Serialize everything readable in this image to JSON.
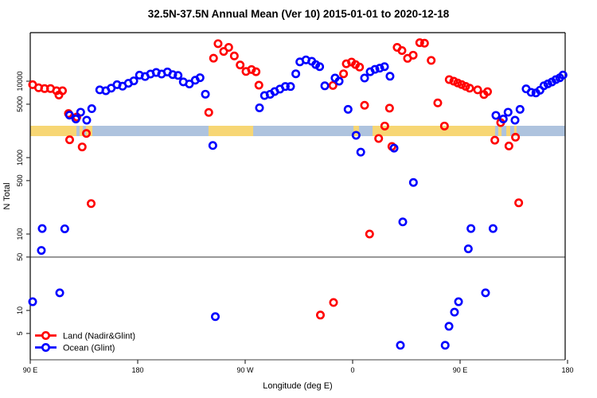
{
  "title": "32.5N-37.5N Annual Mean (Ver 10)   2015-01-01 to 2020-12-18",
  "axes": {
    "xlabel": "Longitude (deg E)",
    "ylabel": "N Total",
    "x_ticks": [
      {
        "t": 90,
        "label": "90 E"
      },
      {
        "t": 180,
        "label": "180"
      },
      {
        "t": 270,
        "label": "90 W"
      },
      {
        "t": 360,
        "label": "0"
      },
      {
        "t": 450,
        "label": "90 E"
      },
      {
        "t": 540,
        "label": "180"
      }
    ],
    "y_ticks": [
      {
        "v": 10000,
        "label": "10000"
      },
      {
        "v": 5000,
        "label": "5000"
      },
      {
        "v": 1000,
        "label": "1000"
      },
      {
        "v": 500,
        "label": "500"
      },
      {
        "v": 100,
        "label": "100"
      },
      {
        "v": 50,
        "label": "50"
      },
      {
        "v": 10,
        "label": "10"
      },
      {
        "v": 5,
        "label": "5"
      }
    ],
    "reference_line_value": 50
  },
  "legend": {
    "items": [
      {
        "label": "Land (Nadir&Glint)",
        "color": "#ff0000"
      },
      {
        "label": "Ocean (Glint)",
        "color": "#0000ff"
      }
    ]
  },
  "colors": {
    "land_series": "#ff0000",
    "ocean_series": "#0000ff",
    "band_land": "#f7d674",
    "band_ocean": "#aec3de",
    "box": "#000000",
    "gray_line": "#808080"
  },
  "chart_data": {
    "type": "scatter",
    "title": "32.5N-37.5N Annual Mean (Ver 10)   2015-01-01 to 2020-12-18",
    "xlabel": "Longitude (deg E)",
    "ylabel": "N Total",
    "x_axis_note": "axis coordinate in deg, running eastward 90E -> 180 -> 90W(270) -> 0(360) -> 90E(450) -> 180(540)",
    "x_range": [
      90,
      540
    ],
    "y_scale": "log10",
    "y_range": [
      2.3,
      43000
    ],
    "surface_band": {
      "description": "land(yellow)/ocean(blue) surface-type strip",
      "n_range": [
        1910,
        2610
      ],
      "segments": [
        {
          "t1": 90,
          "t2": 538,
          "type": "ocean"
        },
        {
          "t1": 90,
          "t2": 128.7,
          "type": "land"
        },
        {
          "t1": 131.3,
          "t2": 134,
          "type": "land"
        },
        {
          "t1": 136.7,
          "t2": 142,
          "type": "land"
        },
        {
          "t1": 239.3,
          "t2": 276.7,
          "type": "land"
        },
        {
          "t1": 360.7,
          "t2": 365.3,
          "type": "land"
        },
        {
          "t1": 376.7,
          "t2": 479.3,
          "type": "land"
        },
        {
          "t1": 482,
          "t2": 484.7,
          "type": "land"
        },
        {
          "t1": 488.7,
          "t2": 492,
          "type": "land"
        },
        {
          "t1": 495.3,
          "t2": 497.3,
          "type": "land"
        }
      ]
    },
    "series": [
      {
        "name": "Land (Nadir&Glint)",
        "color": "#ff0000",
        "points": [
          [
            92,
            9000
          ],
          [
            97,
            8200
          ],
          [
            102,
            8000
          ],
          [
            107,
            8000
          ],
          [
            112,
            7500
          ],
          [
            114,
            6600
          ],
          [
            117,
            7500
          ],
          [
            122,
            3770
          ],
          [
            129,
            3400
          ],
          [
            123,
            1710
          ],
          [
            137,
            2070
          ],
          [
            133.5,
            1380
          ],
          [
            141,
            250
          ],
          [
            239.5,
            3900
          ],
          [
            243.5,
            20000
          ],
          [
            247.3,
            31000
          ],
          [
            252,
            24500
          ],
          [
            256.2,
            27700
          ],
          [
            260.9,
            21400
          ],
          [
            265.8,
            16300
          ],
          [
            270.7,
            13400
          ],
          [
            275.3,
            14200
          ],
          [
            279.1,
            13300
          ],
          [
            281.5,
            8870
          ],
          [
            343.5,
            8800
          ],
          [
            352.4,
            12500
          ],
          [
            354.7,
            16900
          ],
          [
            359.1,
            17800
          ],
          [
            362.4,
            16500
          ],
          [
            365.8,
            15300
          ],
          [
            370,
            4840
          ],
          [
            374.2,
            100
          ],
          [
            381.8,
            1780
          ],
          [
            386.9,
            2590
          ],
          [
            390.9,
            4440
          ],
          [
            392.9,
            1400
          ],
          [
            397.3,
            27700
          ],
          [
            401.3,
            25200
          ],
          [
            406,
            19900
          ],
          [
            410.7,
            21900
          ],
          [
            416.2,
            31900
          ],
          [
            420.2,
            31400
          ],
          [
            425.8,
            18700
          ],
          [
            431.3,
            5200
          ],
          [
            436.9,
            2590
          ],
          [
            440.9,
            10500
          ],
          [
            444.7,
            10000
          ],
          [
            448,
            9480
          ],
          [
            451.3,
            9030
          ],
          [
            454.7,
            8560
          ],
          [
            458,
            8110
          ],
          [
            464.7,
            7700
          ],
          [
            470,
            6700
          ],
          [
            473,
            7300
          ],
          [
            479.1,
            1690
          ],
          [
            484,
            2870
          ],
          [
            490.9,
            1420
          ],
          [
            496.4,
            1850
          ],
          [
            499.1,
            256
          ],
          [
            333,
            8.7
          ],
          [
            344,
            12.7
          ]
        ]
      },
      {
        "name": "Ocean (Glint)",
        "color": "#0000ff",
        "points": [
          [
            92,
            13
          ],
          [
            114.7,
            17
          ],
          [
            99.3,
            61
          ],
          [
            100,
            118
          ],
          [
            118.9,
            117
          ],
          [
            122.9,
            3600
          ],
          [
            128.2,
            3200
          ],
          [
            132.2,
            3930
          ],
          [
            137.3,
            3090
          ],
          [
            141.5,
            4370
          ],
          [
            148.2,
            7700
          ],
          [
            153.3,
            7500
          ],
          [
            157.8,
            8100
          ],
          [
            162.7,
            9000
          ],
          [
            167.3,
            8600
          ],
          [
            172.2,
            9400
          ],
          [
            176.7,
            10100
          ],
          [
            181.5,
            12000
          ],
          [
            186.2,
            11500
          ],
          [
            190.7,
            12400
          ],
          [
            195.5,
            13000
          ],
          [
            200,
            12400
          ],
          [
            204.9,
            13200
          ],
          [
            209.3,
            12200
          ],
          [
            213.8,
            11900
          ],
          [
            218.2,
            9800
          ],
          [
            223.3,
            9200
          ],
          [
            228.2,
            10300
          ],
          [
            232.2,
            11100
          ],
          [
            236.7,
            6760
          ],
          [
            242.9,
            1440
          ],
          [
            245,
            8.3
          ],
          [
            282,
            4480
          ],
          [
            286.2,
            6490
          ],
          [
            290.9,
            6740
          ],
          [
            294.7,
            7320
          ],
          [
            299.1,
            7880
          ],
          [
            303.6,
            8520
          ],
          [
            308,
            8520
          ],
          [
            312.4,
            12500
          ],
          [
            315.8,
            17900
          ],
          [
            320.9,
            19000
          ],
          [
            325.8,
            18200
          ],
          [
            329.1,
            16500
          ],
          [
            332.4,
            15500
          ],
          [
            336.7,
            8700
          ],
          [
            345.3,
            11000
          ],
          [
            348.7,
            10000
          ],
          [
            356.2,
            4280
          ],
          [
            362.9,
            1960
          ],
          [
            366.8,
            1180
          ],
          [
            370,
            11000
          ],
          [
            374.7,
            13300
          ],
          [
            378.7,
            14300
          ],
          [
            382.7,
            14800
          ],
          [
            386.7,
            15500
          ],
          [
            391.3,
            11600
          ],
          [
            394.7,
            1330
          ],
          [
            402,
            144
          ],
          [
            400,
            3.5
          ],
          [
            410.9,
            473
          ],
          [
            437.5,
            3.5
          ],
          [
            440.7,
            6.2
          ],
          [
            445.3,
            9.5
          ],
          [
            448.7,
            13
          ],
          [
            456.9,
            64
          ],
          [
            459.1,
            118
          ],
          [
            471.3,
            17
          ],
          [
            477.6,
            118
          ],
          [
            480,
            3570
          ],
          [
            486.2,
            3200
          ],
          [
            490.2,
            3930
          ],
          [
            496,
            3090
          ],
          [
            500.2,
            4280
          ],
          [
            505.3,
            7930
          ],
          [
            509.5,
            7140
          ],
          [
            513.5,
            7030
          ],
          [
            516.9,
            7620
          ],
          [
            520.2,
            8720
          ],
          [
            523.5,
            9230
          ],
          [
            526.9,
            9760
          ],
          [
            530.2,
            10490
          ],
          [
            533.5,
            11080
          ],
          [
            536.2,
            12030
          ]
        ]
      }
    ]
  }
}
